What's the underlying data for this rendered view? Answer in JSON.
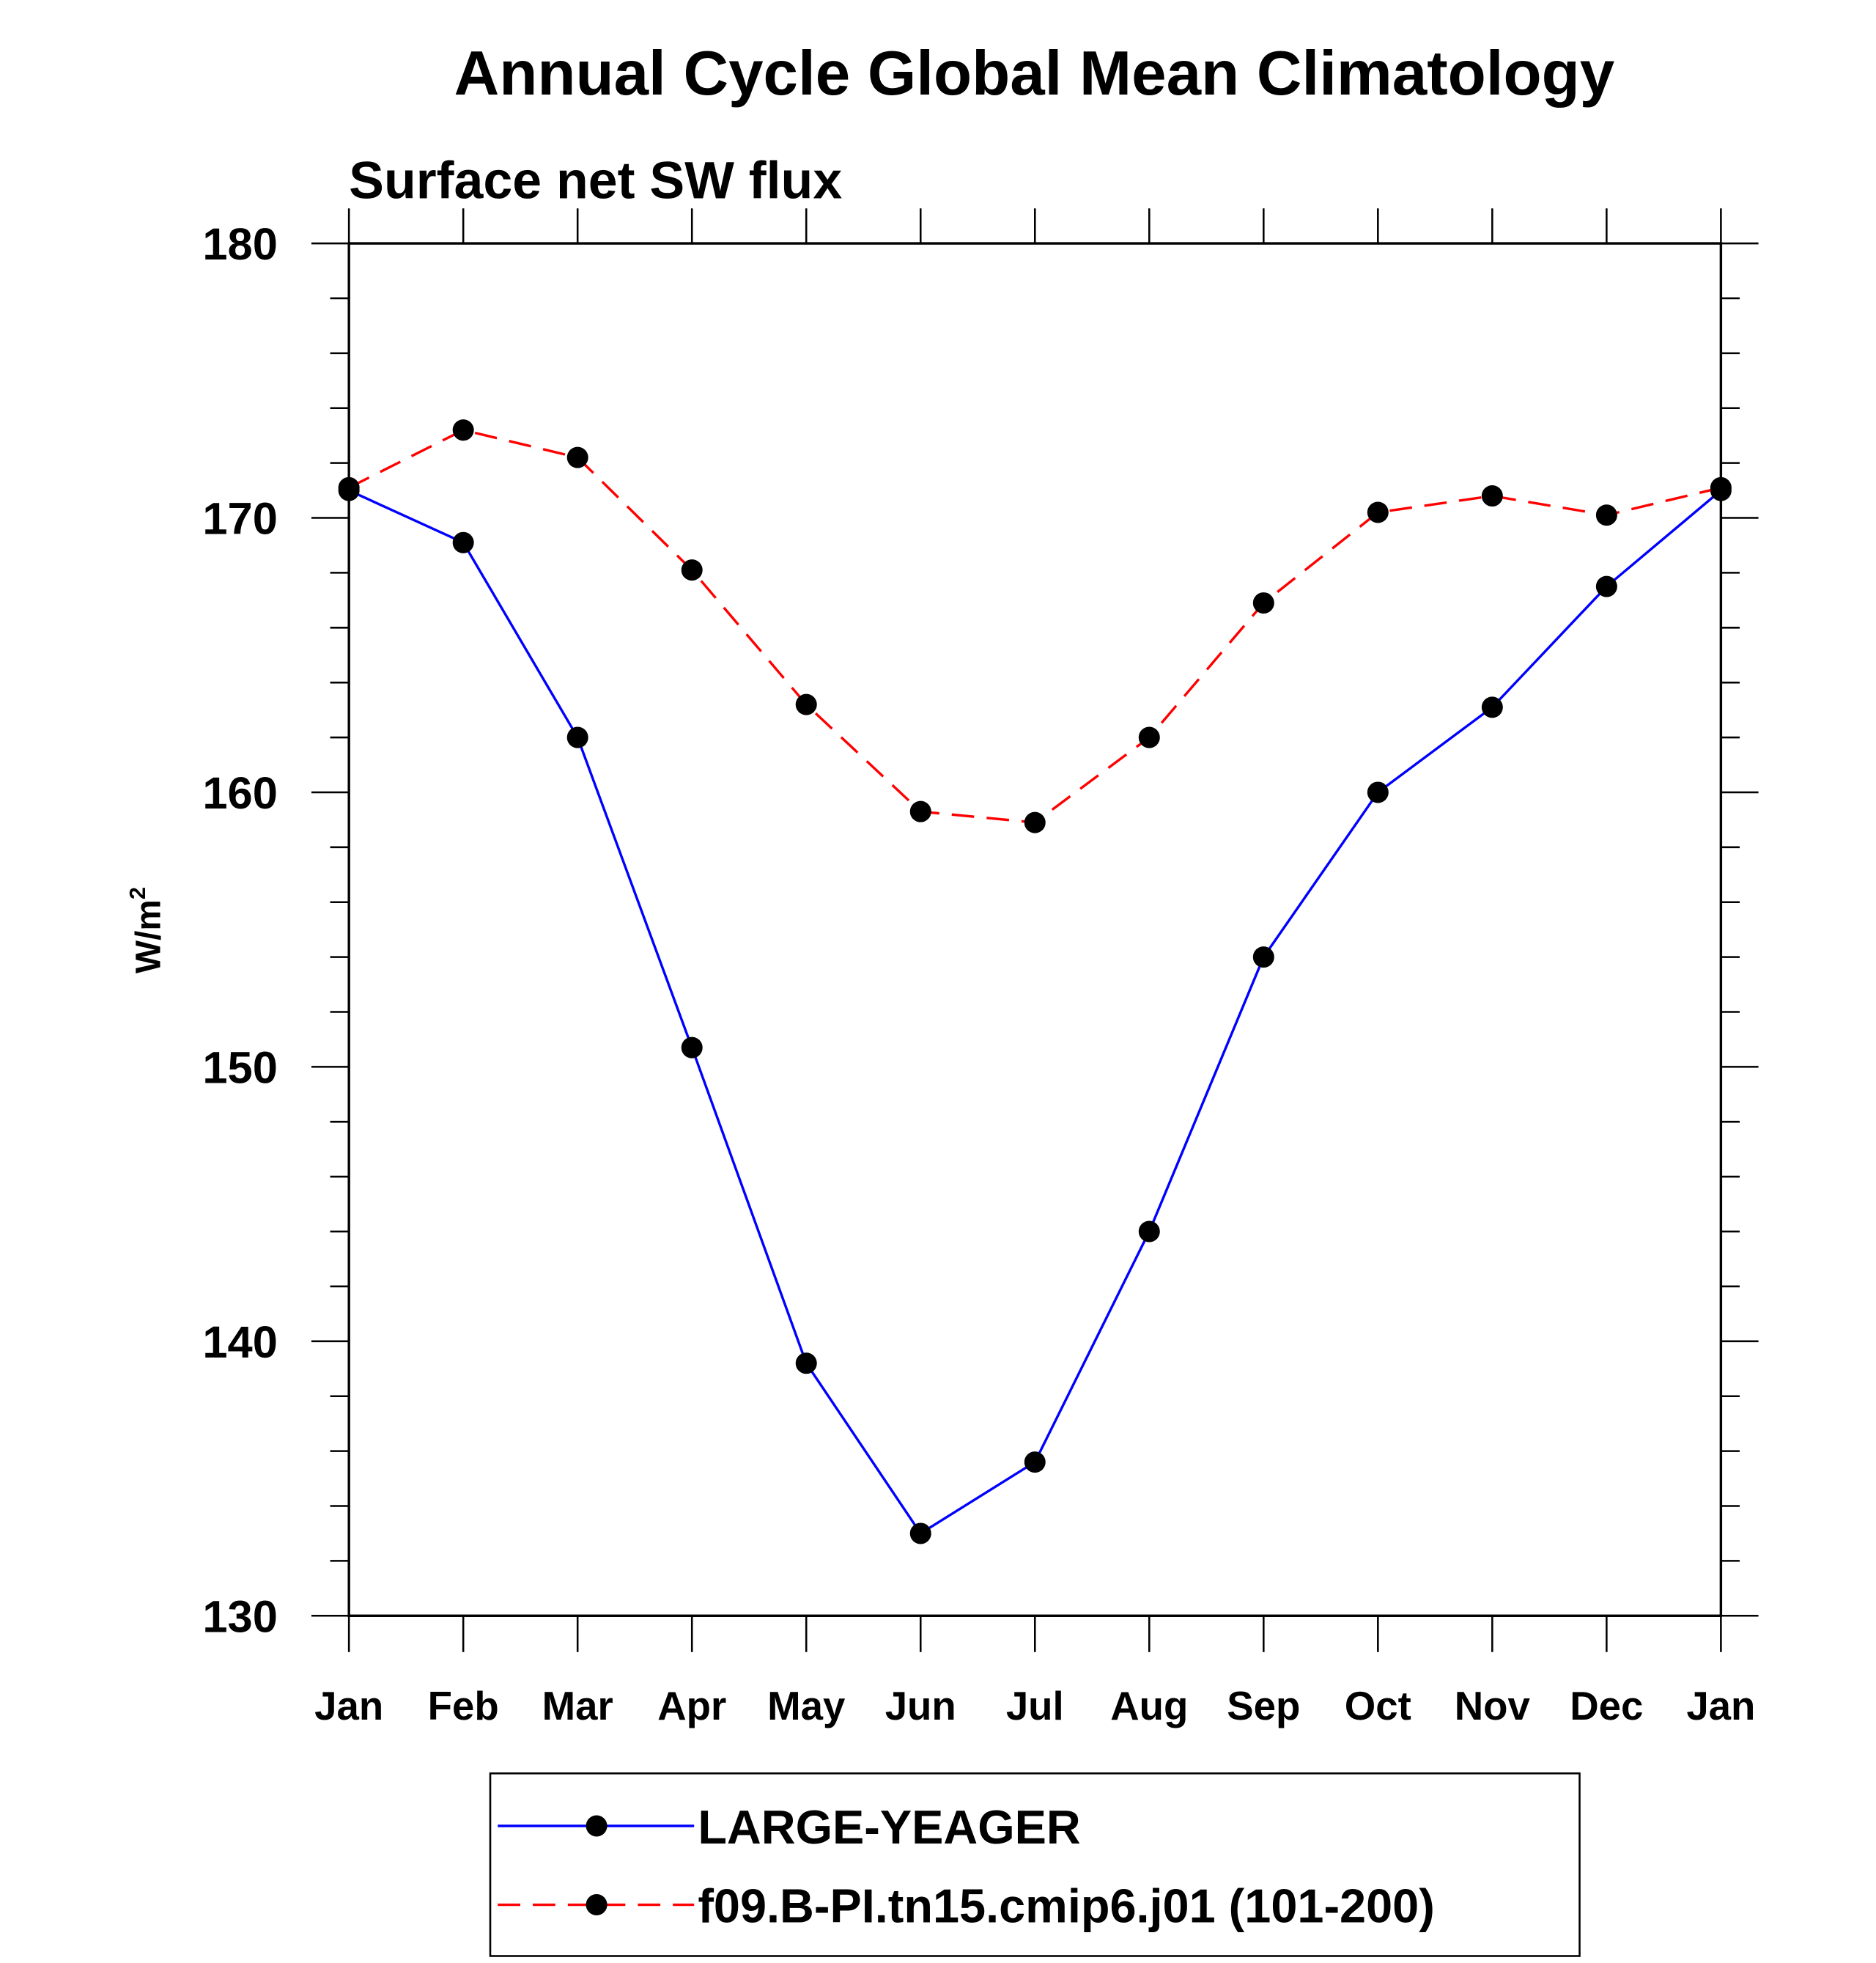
{
  "chart_data": {
    "type": "line",
    "title": "Annual Cycle Global Mean Climatology",
    "subtitle": "Surface net SW flux",
    "xlabel": "",
    "ylabel": "W/m",
    "ylabel_superscript": "2",
    "categories": [
      "Jan",
      "Feb",
      "Mar",
      "Apr",
      "May",
      "Jun",
      "Jul",
      "Aug",
      "Sep",
      "Oct",
      "Nov",
      "Dec",
      "Jan"
    ],
    "ylim": [
      130,
      180
    ],
    "yticks": [
      130,
      140,
      150,
      160,
      170,
      180
    ],
    "grid": false,
    "legend_position": "bottom-center",
    "series": [
      {
        "name": "LARGE-YEAGER",
        "color": "#0000ff",
        "dash": "solid",
        "values": [
          171.0,
          169.1,
          162.0,
          150.7,
          139.2,
          133.0,
          135.6,
          144.0,
          154.0,
          160.0,
          163.1,
          167.5,
          171.0
        ]
      },
      {
        "name": "f09.B-PI.tn15.cmip6.j01 (101-200)",
        "color": "#ff0000",
        "dash": "dashed",
        "values": [
          171.1,
          173.2,
          172.2,
          168.1,
          163.2,
          159.3,
          158.9,
          162.0,
          166.9,
          170.2,
          170.8,
          170.1,
          171.1
        ]
      }
    ]
  }
}
